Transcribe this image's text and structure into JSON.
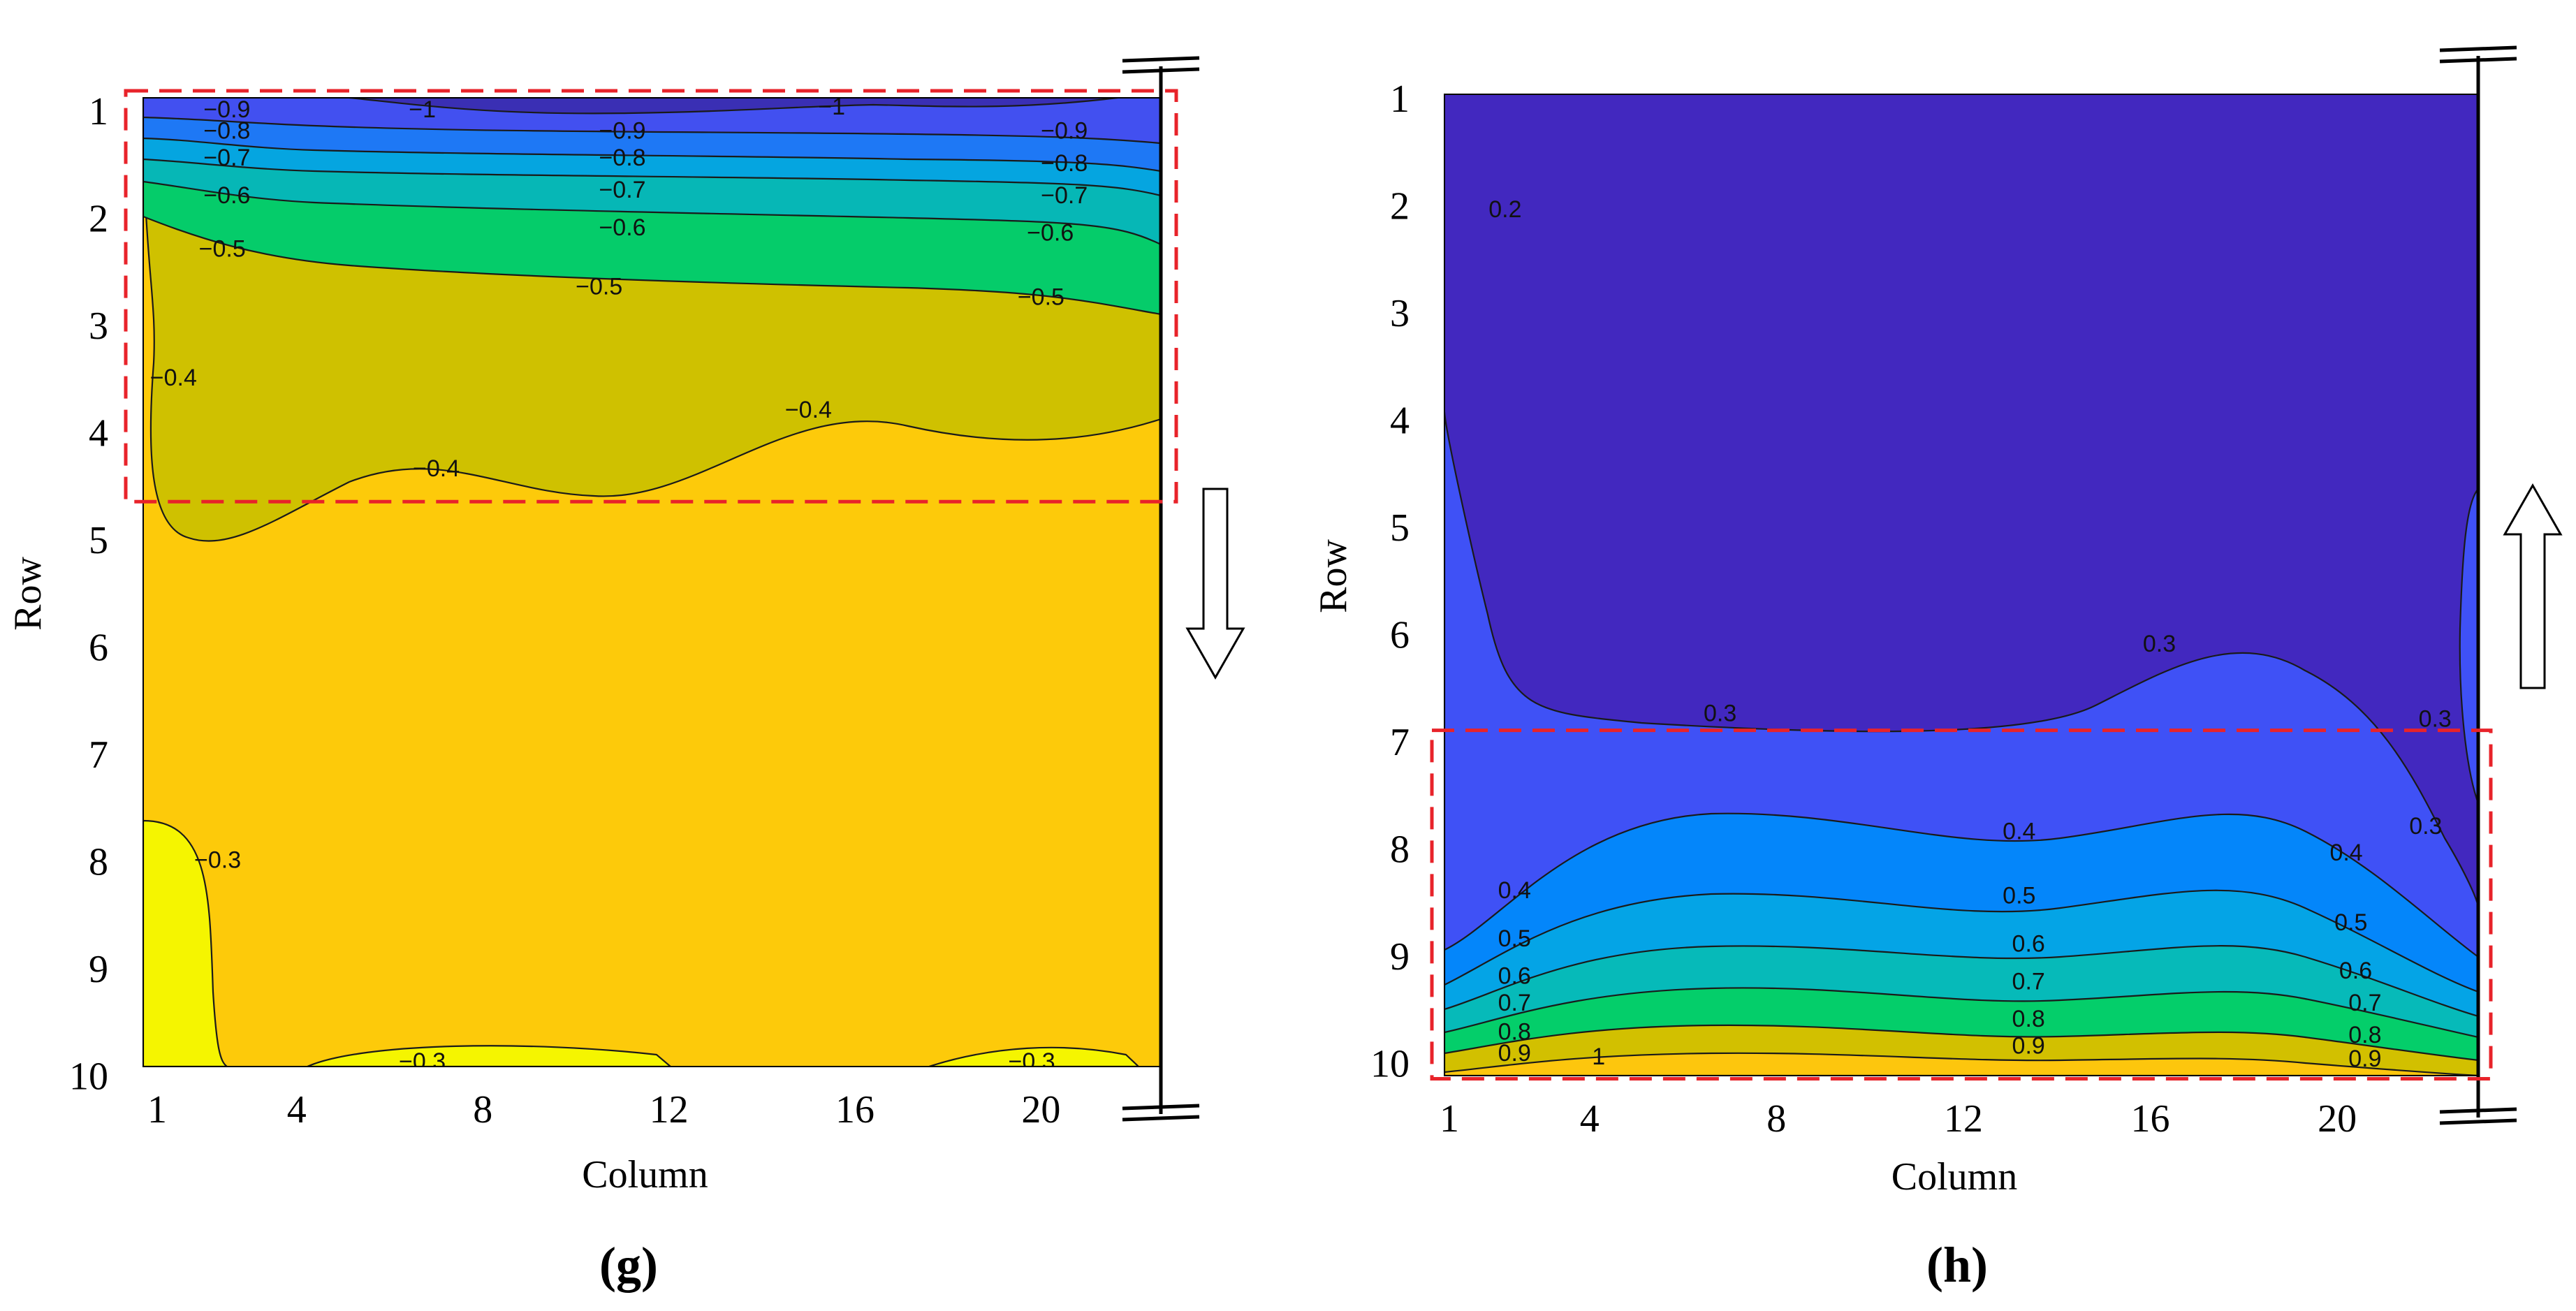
{
  "chart_data": [
    {
      "type": "contour",
      "caption": "(g)",
      "xlabel": "Column",
      "ylabel": "Row",
      "xticks": [
        "1",
        "4",
        "8",
        "12",
        "16",
        "20"
      ],
      "yticks": [
        "1",
        "2",
        "3",
        "4",
        "5",
        "6",
        "7",
        "8",
        "9",
        "10"
      ],
      "xlim": [
        1,
        22.5
      ],
      "ylim": [
        1,
        10
      ],
      "flow_direction": "down",
      "highlight_rows": [
        0.85,
        4.65
      ],
      "levels": [
        -1,
        -0.9,
        -0.8,
        -0.7,
        -0.6,
        -0.5,
        -0.4,
        -0.3
      ],
      "fill_colors": [
        "#3a2fb4",
        "#4250f0",
        "#1e78f5",
        "#05a5e0",
        "#06b7b6",
        "#05cc6a",
        "#cfc100",
        "#fdca0a",
        "#f5f500"
      ],
      "contour_labels": [
        {
          "text": "−0.9",
          "col": 2.5,
          "row": 1.0
        },
        {
          "text": "−0.8",
          "col": 2.5,
          "row": 1.2
        },
        {
          "text": "−0.7",
          "col": 2.5,
          "row": 1.45
        },
        {
          "text": "−0.6",
          "col": 2.5,
          "row": 1.8
        },
        {
          "text": "−0.5",
          "col": 2.4,
          "row": 2.3
        },
        {
          "text": "−1",
          "col": 6.7,
          "row": 1.0
        },
        {
          "text": "−1",
          "col": 15.5,
          "row": 0.95
        },
        {
          "text": "−0.9",
          "col": 11.0,
          "row": 1.2
        },
        {
          "text": "−0.8",
          "col": 11.0,
          "row": 1.45
        },
        {
          "text": "−0.7",
          "col": 11.0,
          "row": 1.75
        },
        {
          "text": "−0.6",
          "col": 11.0,
          "row": 2.1
        },
        {
          "text": "−0.5",
          "col": 10.5,
          "row": 2.65
        },
        {
          "text": "−0.9",
          "col": 20.5,
          "row": 1.2
        },
        {
          "text": "−0.8",
          "col": 20.5,
          "row": 1.5
        },
        {
          "text": "−0.7",
          "col": 20.5,
          "row": 1.8
        },
        {
          "text": "−0.6",
          "col": 20.2,
          "row": 2.15
        },
        {
          "text": "−0.5",
          "col": 20.0,
          "row": 2.75
        },
        {
          "text": "−0.4",
          "col": 1.35,
          "row": 3.5
        },
        {
          "text": "−0.4",
          "col": 15.0,
          "row": 3.8
        },
        {
          "text": "−0.4",
          "col": 7.0,
          "row": 4.35
        },
        {
          "text": "−0.3",
          "col": 2.3,
          "row": 8.0
        },
        {
          "text": "−0.3",
          "col": 6.7,
          "row": 9.92
        },
        {
          "text": "−0.3",
          "col": 19.8,
          "row": 9.92
        }
      ]
    },
    {
      "type": "contour",
      "caption": "(h)",
      "xlabel": "Column",
      "ylabel": "Row",
      "xticks": [
        "1",
        "4",
        "8",
        "12",
        "16",
        "20"
      ],
      "yticks": [
        "1",
        "2",
        "3",
        "4",
        "5",
        "6",
        "7",
        "8",
        "9",
        "10"
      ],
      "xlim": [
        1,
        22.5
      ],
      "ylim": [
        1,
        10
      ],
      "flow_direction": "up",
      "highlight_rows": [
        6.9,
        10.15
      ],
      "levels": [
        0.2,
        0.3,
        0.4,
        0.5,
        0.6,
        0.7,
        0.8,
        0.9,
        1.0
      ],
      "fill_colors": [
        "#4228bf",
        "#3f51f6",
        "#0486fa",
        "#04a4e6",
        "#06bab9",
        "#04ce6a",
        "#d2c000",
        "#fdc60d"
      ],
      "contour_labels": [
        {
          "text": "0.2",
          "col": 2.0,
          "row": 2.05
        },
        {
          "text": "0.3",
          "col": 16.0,
          "row": 6.1
        },
        {
          "text": "0.3",
          "col": 6.6,
          "row": 6.75
        },
        {
          "text": "0.3",
          "col": 21.9,
          "row": 6.8
        },
        {
          "text": "0.3",
          "col": 21.7,
          "row": 7.8
        },
        {
          "text": "0.4",
          "col": 2.2,
          "row": 8.4
        },
        {
          "text": "0.4",
          "col": 13.0,
          "row": 7.85
        },
        {
          "text": "0.4",
          "col": 20.0,
          "row": 8.05
        },
        {
          "text": "0.5",
          "col": 2.2,
          "row": 8.85
        },
        {
          "text": "0.5",
          "col": 13.0,
          "row": 8.45
        },
        {
          "text": "0.5",
          "col": 20.1,
          "row": 8.7
        },
        {
          "text": "0.6",
          "col": 2.2,
          "row": 9.2
        },
        {
          "text": "0.6",
          "col": 13.2,
          "row": 8.9
        },
        {
          "text": "0.6",
          "col": 20.2,
          "row": 9.15
        },
        {
          "text": "0.7",
          "col": 2.2,
          "row": 9.45
        },
        {
          "text": "0.7",
          "col": 13.2,
          "row": 9.25
        },
        {
          "text": "0.7",
          "col": 20.4,
          "row": 9.45
        },
        {
          "text": "0.8",
          "col": 2.2,
          "row": 9.72
        },
        {
          "text": "0.8",
          "col": 13.2,
          "row": 9.6
        },
        {
          "text": "0.8",
          "col": 20.4,
          "row": 9.75
        },
        {
          "text": "0.9",
          "col": 2.2,
          "row": 9.92
        },
        {
          "text": "0.9",
          "col": 13.2,
          "row": 9.85
        },
        {
          "text": "0.9",
          "col": 20.4,
          "row": 9.97
        },
        {
          "text": "1",
          "col": 4.0,
          "row": 9.95
        }
      ]
    }
  ]
}
